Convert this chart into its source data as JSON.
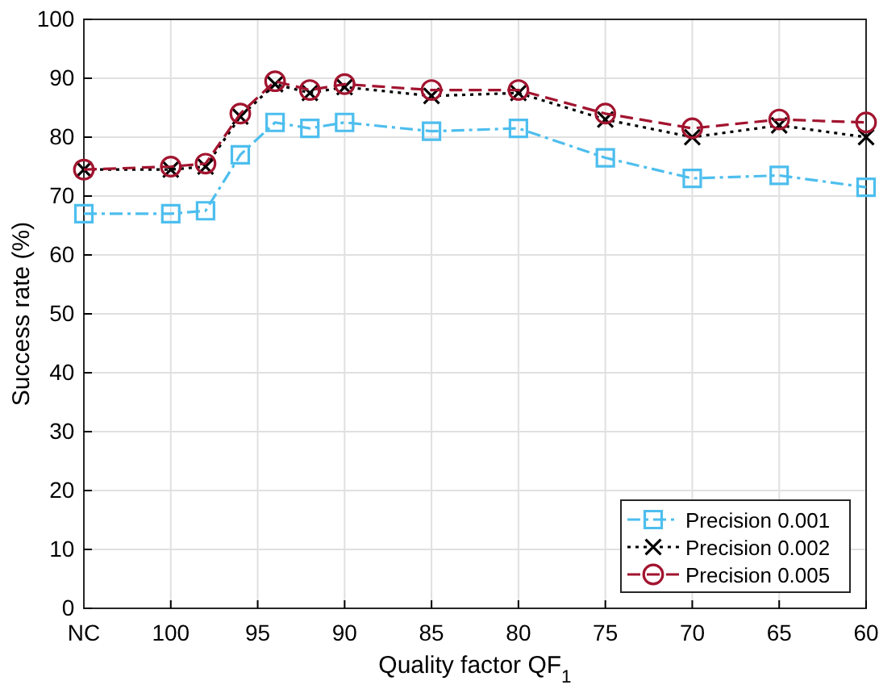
{
  "chart_data": {
    "type": "line",
    "xlabel": "Quality factor QF$_{1}$",
    "ylabel": "Success rate (%)",
    "x": [
      105,
      100,
      98,
      96,
      94,
      92,
      90,
      85,
      80,
      75,
      70,
      65,
      60
    ],
    "xlim": [
      105,
      60
    ],
    "xticks": [
      {
        "value": 105,
        "label": "NC"
      },
      100,
      95,
      90,
      85,
      80,
      75,
      70,
      65,
      60
    ],
    "ylim": [
      0,
      100
    ],
    "yticks": [
      0,
      10,
      20,
      30,
      40,
      50,
      60,
      70,
      80,
      90,
      100
    ],
    "grid": true,
    "legend": "bottom right",
    "series": [
      {
        "name": "Precision 0.001",
        "color": "#4dbeee",
        "marker": "square",
        "line_style": "dashdot",
        "values": [
          67,
          67,
          67.5,
          77,
          82.5,
          81.5,
          82.5,
          81,
          81.5,
          76.5,
          73,
          73.5,
          71.5
        ]
      },
      {
        "name": "Precision 0.002",
        "color": "#000000",
        "marker": "cross",
        "line_style": "dotted",
        "values": [
          74.5,
          74.5,
          75,
          83.5,
          89,
          87.5,
          88.5,
          87,
          87.5,
          83,
          80,
          82,
          80
        ]
      },
      {
        "name": "Precision 0.005",
        "color": "#a2142f",
        "marker": "circle",
        "line_style": "dashed",
        "values": [
          74.5,
          75,
          75.5,
          84,
          89.5,
          88,
          89,
          88,
          88,
          84,
          81.5,
          83,
          82.5
        ]
      }
    ]
  }
}
